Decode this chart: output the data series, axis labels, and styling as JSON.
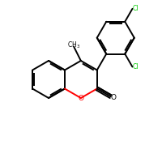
{
  "background_color": "#ffffff",
  "bond_color": "#000000",
  "oxygen_color": "#ff0000",
  "chlorine_color": "#00cc00",
  "figsize": [
    2.0,
    2.0
  ],
  "dpi": 100,
  "xlim": [
    0,
    10
  ],
  "ylim": [
    0,
    10
  ]
}
